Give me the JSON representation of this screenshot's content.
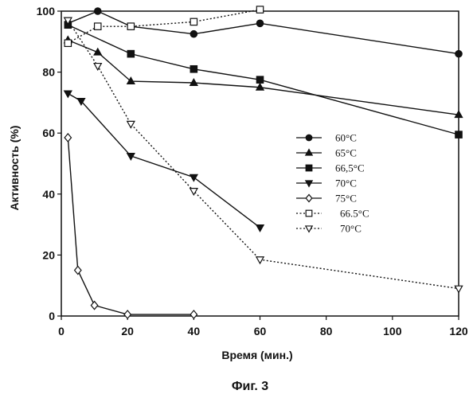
{
  "chart_data": {
    "type": "line",
    "xlabel": "Время (мин.)",
    "ylabel": "Активность (%)",
    "caption": "Фиг. 3",
    "xlim": [
      0,
      120
    ],
    "ylim": [
      0,
      100
    ],
    "xticks": [
      0,
      20,
      40,
      60,
      80,
      100,
      120
    ],
    "yticks": [
      0,
      20,
      40,
      60,
      80,
      100
    ],
    "ytick_labels": [
      "0",
      "20",
      "40",
      "60",
      "80",
      "100"
    ],
    "grid": false,
    "legend_position": "right-middle",
    "series": [
      {
        "name": "60°C",
        "marker": "circle-filled",
        "line": "solid",
        "x": [
          2,
          11,
          21,
          40,
          60,
          120
        ],
        "y": [
          96,
          100,
          95,
          92.5,
          96,
          86
        ]
      },
      {
        "name": "65°C",
        "marker": "triangle-up-filled",
        "line": "solid",
        "x": [
          2,
          11,
          21,
          40,
          60,
          120
        ],
        "y": [
          90.5,
          86.5,
          77,
          76.5,
          75,
          66
        ]
      },
      {
        "name": "66,5°C",
        "marker": "square-filled",
        "line": "solid",
        "x": [
          2,
          21,
          40,
          60,
          120
        ],
        "y": [
          95.5,
          86,
          81,
          77.5,
          59.5
        ]
      },
      {
        "name": "70°C",
        "marker": "triangle-down-filled",
        "line": "solid",
        "x": [
          2,
          6,
          21,
          40,
          60
        ],
        "y": [
          73,
          70.5,
          52.5,
          45.5,
          29
        ]
      },
      {
        "name": "75°C",
        "marker": "diamond-open",
        "line": "solid",
        "x": [
          2,
          5,
          10,
          20,
          40
        ],
        "y": [
          58.5,
          15,
          3.5,
          0.5,
          0.5
        ]
      },
      {
        "name": "66.5°C",
        "marker": "square-open",
        "line": "dotted",
        "x": [
          2,
          11,
          21,
          40,
          60
        ],
        "y": [
          89.5,
          95,
          95,
          96.5,
          100.5
        ]
      },
      {
        "name": "70°C",
        "marker": "triangle-down-open",
        "line": "dotted",
        "x": [
          2,
          11,
          21,
          40,
          60,
          120
        ],
        "y": [
          97,
          82,
          63,
          41,
          18.5,
          9
        ]
      }
    ]
  }
}
